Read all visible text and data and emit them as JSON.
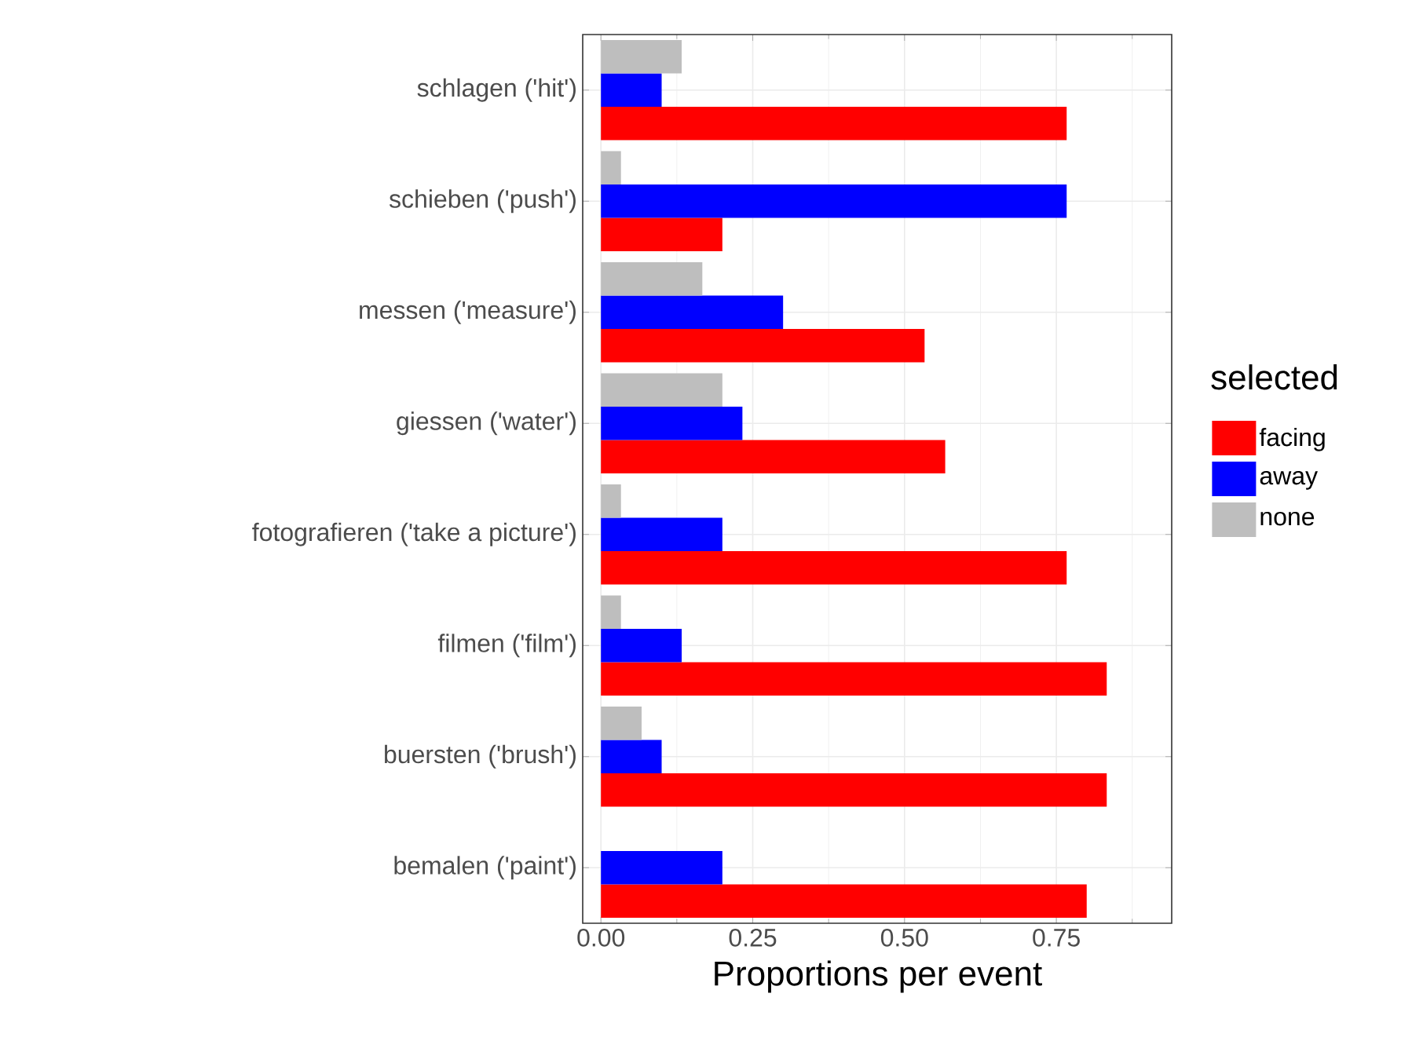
{
  "chart_data": {
    "type": "bar",
    "orientation": "horizontal",
    "xlabel": "Proportions per event",
    "legend_title": "selected",
    "legend": "right",
    "grid": true,
    "categories": [
      "schlagen ('hit')",
      "schieben ('push')",
      "messen ('measure')",
      "giessen ('water')",
      "fotografieren ('take a picture')",
      "filmen ('film')",
      "buersten ('brush')",
      "bemalen ('paint')"
    ],
    "series": [
      {
        "name": "facing",
        "color": "#ff0000",
        "values": [
          0.767,
          0.2,
          0.533,
          0.567,
          0.767,
          0.833,
          0.833,
          0.8
        ]
      },
      {
        "name": "away",
        "color": "#0000ff",
        "values": [
          0.1,
          0.767,
          0.3,
          0.233,
          0.2,
          0.133,
          0.1,
          0.2
        ]
      },
      {
        "name": "none",
        "color": "#bebebe",
        "values": [
          0.133,
          0.033,
          0.167,
          0.2,
          0.033,
          0.033,
          0.067,
          0
        ]
      }
    ],
    "xlim": [
      -0.03,
      0.94
    ],
    "xticks": [
      {
        "value": 0,
        "label": "0.00"
      },
      {
        "value": 0.25,
        "label": "0.25"
      },
      {
        "value": 0.5,
        "label": "0.50"
      },
      {
        "value": 0.75,
        "label": "0.75"
      }
    ]
  }
}
